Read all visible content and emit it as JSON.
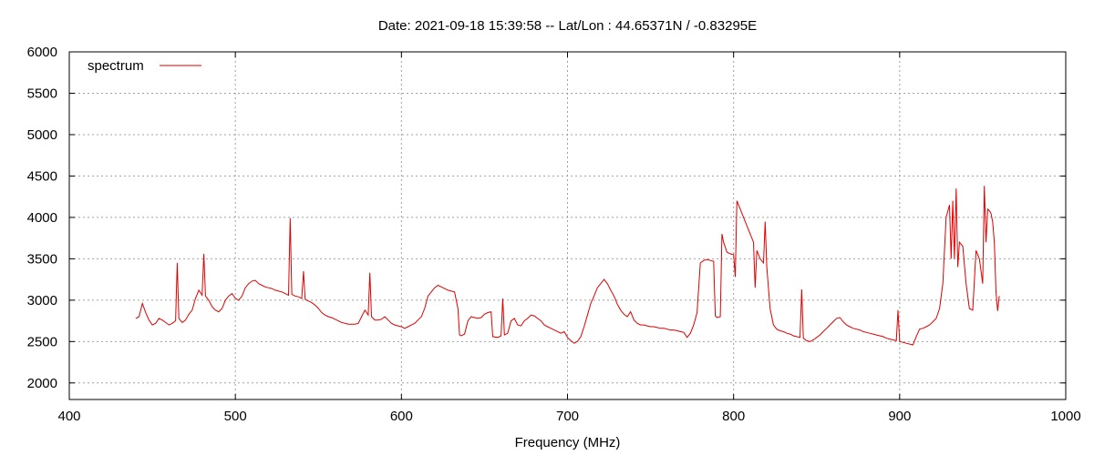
{
  "chart_data": {
    "type": "line",
    "title": "Date: 2021-09-18 15:39:58  --  Lat/Lon : 44.65371N / -0.83295E",
    "xlabel": "Frequency (MHz)",
    "ylabel": "",
    "xlim": [
      400,
      1000
    ],
    "ylim": [
      1800,
      6000
    ],
    "xticks": [
      400,
      500,
      600,
      700,
      800,
      900,
      1000
    ],
    "yticks": [
      2000,
      2500,
      3000,
      3500,
      4000,
      4500,
      5000,
      5500,
      6000
    ],
    "grid": true,
    "legend_position": "top-left",
    "series": [
      {
        "name": "spectrum",
        "color": "#e00000",
        "points": [
          [
            440,
            2780
          ],
          [
            442,
            2800
          ],
          [
            444,
            2960
          ],
          [
            446,
            2850
          ],
          [
            448,
            2760
          ],
          [
            450,
            2700
          ],
          [
            452,
            2720
          ],
          [
            454,
            2780
          ],
          [
            456,
            2760
          ],
          [
            458,
            2730
          ],
          [
            460,
            2700
          ],
          [
            462,
            2720
          ],
          [
            464,
            2750
          ],
          [
            465,
            3450
          ],
          [
            466,
            2780
          ],
          [
            468,
            2730
          ],
          [
            470,
            2760
          ],
          [
            472,
            2830
          ],
          [
            474,
            2880
          ],
          [
            476,
            3020
          ],
          [
            478,
            3120
          ],
          [
            480,
            3060
          ],
          [
            481,
            3560
          ],
          [
            482,
            3050
          ],
          [
            484,
            3000
          ],
          [
            486,
            2920
          ],
          [
            488,
            2880
          ],
          [
            490,
            2860
          ],
          [
            492,
            2900
          ],
          [
            494,
            3000
          ],
          [
            496,
            3050
          ],
          [
            498,
            3080
          ],
          [
            500,
            3020
          ],
          [
            502,
            3000
          ],
          [
            504,
            3050
          ],
          [
            506,
            3150
          ],
          [
            508,
            3200
          ],
          [
            510,
            3230
          ],
          [
            512,
            3240
          ],
          [
            514,
            3200
          ],
          [
            516,
            3180
          ],
          [
            518,
            3160
          ],
          [
            520,
            3150
          ],
          [
            522,
            3140
          ],
          [
            524,
            3120
          ],
          [
            526,
            3110
          ],
          [
            528,
            3100
          ],
          [
            530,
            3080
          ],
          [
            532,
            3060
          ],
          [
            533,
            3990
          ],
          [
            534,
            3070
          ],
          [
            536,
            3050
          ],
          [
            538,
            3040
          ],
          [
            540,
            3020
          ],
          [
            541,
            3350
          ],
          [
            542,
            3010
          ],
          [
            544,
            2990
          ],
          [
            546,
            2970
          ],
          [
            548,
            2940
          ],
          [
            550,
            2900
          ],
          [
            552,
            2850
          ],
          [
            554,
            2820
          ],
          [
            556,
            2800
          ],
          [
            558,
            2790
          ],
          [
            560,
            2770
          ],
          [
            562,
            2750
          ],
          [
            564,
            2730
          ],
          [
            566,
            2720
          ],
          [
            568,
            2710
          ],
          [
            570,
            2710
          ],
          [
            572,
            2710
          ],
          [
            574,
            2720
          ],
          [
            576,
            2800
          ],
          [
            578,
            2880
          ],
          [
            580,
            2820
          ],
          [
            581,
            3330
          ],
          [
            582,
            2800
          ],
          [
            584,
            2760
          ],
          [
            586,
            2760
          ],
          [
            588,
            2770
          ],
          [
            590,
            2800
          ],
          [
            592,
            2760
          ],
          [
            594,
            2720
          ],
          [
            596,
            2700
          ],
          [
            598,
            2690
          ],
          [
            600,
            2680
          ],
          [
            602,
            2660
          ],
          [
            604,
            2680
          ],
          [
            606,
            2700
          ],
          [
            608,
            2720
          ],
          [
            610,
            2760
          ],
          [
            612,
            2800
          ],
          [
            614,
            2900
          ],
          [
            616,
            3050
          ],
          [
            618,
            3100
          ],
          [
            620,
            3150
          ],
          [
            622,
            3180
          ],
          [
            624,
            3160
          ],
          [
            626,
            3140
          ],
          [
            628,
            3120
          ],
          [
            630,
            3110
          ],
          [
            632,
            3100
          ],
          [
            634,
            2900
          ],
          [
            635,
            2580
          ],
          [
            636,
            2570
          ],
          [
            638,
            2590
          ],
          [
            640,
            2750
          ],
          [
            642,
            2800
          ],
          [
            644,
            2790
          ],
          [
            646,
            2780
          ],
          [
            648,
            2790
          ],
          [
            650,
            2830
          ],
          [
            652,
            2850
          ],
          [
            654,
            2860
          ],
          [
            655,
            2560
          ],
          [
            658,
            2550
          ],
          [
            660,
            2570
          ],
          [
            661,
            3020
          ],
          [
            662,
            2580
          ],
          [
            664,
            2600
          ],
          [
            666,
            2750
          ],
          [
            668,
            2780
          ],
          [
            670,
            2700
          ],
          [
            672,
            2690
          ],
          [
            674,
            2750
          ],
          [
            676,
            2780
          ],
          [
            678,
            2820
          ],
          [
            680,
            2810
          ],
          [
            682,
            2780
          ],
          [
            684,
            2750
          ],
          [
            686,
            2700
          ],
          [
            688,
            2680
          ],
          [
            690,
            2660
          ],
          [
            692,
            2640
          ],
          [
            694,
            2620
          ],
          [
            696,
            2600
          ],
          [
            698,
            2620
          ],
          [
            700,
            2550
          ],
          [
            702,
            2510
          ],
          [
            704,
            2480
          ],
          [
            706,
            2500
          ],
          [
            708,
            2560
          ],
          [
            710,
            2680
          ],
          [
            712,
            2820
          ],
          [
            714,
            2960
          ],
          [
            716,
            3050
          ],
          [
            718,
            3150
          ],
          [
            720,
            3200
          ],
          [
            722,
            3250
          ],
          [
            724,
            3200
          ],
          [
            726,
            3120
          ],
          [
            728,
            3050
          ],
          [
            730,
            2950
          ],
          [
            732,
            2880
          ],
          [
            734,
            2830
          ],
          [
            736,
            2800
          ],
          [
            738,
            2860
          ],
          [
            740,
            2760
          ],
          [
            742,
            2720
          ],
          [
            744,
            2700
          ],
          [
            746,
            2700
          ],
          [
            748,
            2690
          ],
          [
            750,
            2680
          ],
          [
            752,
            2680
          ],
          [
            754,
            2670
          ],
          [
            756,
            2660
          ],
          [
            758,
            2660
          ],
          [
            760,
            2650
          ],
          [
            762,
            2640
          ],
          [
            764,
            2640
          ],
          [
            766,
            2630
          ],
          [
            768,
            2620
          ],
          [
            770,
            2610
          ],
          [
            772,
            2550
          ],
          [
            774,
            2600
          ],
          [
            776,
            2700
          ],
          [
            778,
            2850
          ],
          [
            780,
            3450
          ],
          [
            782,
            3480
          ],
          [
            784,
            3490
          ],
          [
            786,
            3480
          ],
          [
            788,
            3470
          ],
          [
            789,
            2810
          ],
          [
            790,
            2790
          ],
          [
            792,
            2800
          ],
          [
            793,
            3800
          ],
          [
            794,
            3700
          ],
          [
            796,
            3580
          ],
          [
            798,
            3560
          ],
          [
            800,
            3550
          ],
          [
            801,
            3280
          ],
          [
            802,
            4200
          ],
          [
            804,
            4100
          ],
          [
            806,
            4000
          ],
          [
            808,
            3900
          ],
          [
            810,
            3800
          ],
          [
            812,
            3700
          ],
          [
            813,
            3150
          ],
          [
            814,
            3600
          ],
          [
            816,
            3500
          ],
          [
            818,
            3450
          ],
          [
            819,
            3950
          ],
          [
            820,
            3400
          ],
          [
            822,
            2900
          ],
          [
            824,
            2700
          ],
          [
            826,
            2650
          ],
          [
            828,
            2630
          ],
          [
            830,
            2620
          ],
          [
            832,
            2600
          ],
          [
            834,
            2590
          ],
          [
            836,
            2570
          ],
          [
            838,
            2560
          ],
          [
            840,
            2550
          ],
          [
            841,
            3130
          ],
          [
            842,
            2540
          ],
          [
            844,
            2510
          ],
          [
            846,
            2500
          ],
          [
            848,
            2520
          ],
          [
            850,
            2550
          ],
          [
            852,
            2580
          ],
          [
            854,
            2620
          ],
          [
            856,
            2660
          ],
          [
            858,
            2700
          ],
          [
            860,
            2740
          ],
          [
            862,
            2780
          ],
          [
            864,
            2790
          ],
          [
            866,
            2740
          ],
          [
            868,
            2700
          ],
          [
            870,
            2680
          ],
          [
            872,
            2660
          ],
          [
            874,
            2650
          ],
          [
            876,
            2640
          ],
          [
            878,
            2620
          ],
          [
            880,
            2610
          ],
          [
            882,
            2600
          ],
          [
            884,
            2590
          ],
          [
            886,
            2580
          ],
          [
            888,
            2570
          ],
          [
            890,
            2560
          ],
          [
            892,
            2540
          ],
          [
            894,
            2530
          ],
          [
            896,
            2520
          ],
          [
            898,
            2510
          ],
          [
            899,
            2880
          ],
          [
            900,
            2500
          ],
          [
            902,
            2490
          ],
          [
            904,
            2480
          ],
          [
            906,
            2470
          ],
          [
            908,
            2460
          ],
          [
            910,
            2560
          ],
          [
            912,
            2650
          ],
          [
            914,
            2660
          ],
          [
            916,
            2680
          ],
          [
            918,
            2700
          ],
          [
            920,
            2740
          ],
          [
            922,
            2780
          ],
          [
            924,
            2900
          ],
          [
            926,
            3200
          ],
          [
            928,
            4000
          ],
          [
            930,
            4150
          ],
          [
            931,
            3500
          ],
          [
            932,
            4200
          ],
          [
            933,
            3500
          ],
          [
            934,
            4350
          ],
          [
            935,
            3400
          ],
          [
            936,
            3700
          ],
          [
            938,
            3650
          ],
          [
            940,
            3200
          ],
          [
            942,
            2900
          ],
          [
            944,
            2880
          ],
          [
            946,
            3600
          ],
          [
            948,
            3500
          ],
          [
            950,
            3200
          ],
          [
            951,
            4380
          ],
          [
            952,
            3700
          ],
          [
            953,
            4100
          ],
          [
            954,
            4080
          ],
          [
            955,
            4050
          ],
          [
            956,
            3950
          ],
          [
            957,
            3700
          ],
          [
            958,
            3100
          ],
          [
            959,
            2870
          ],
          [
            960,
            3050
          ]
        ]
      }
    ]
  }
}
